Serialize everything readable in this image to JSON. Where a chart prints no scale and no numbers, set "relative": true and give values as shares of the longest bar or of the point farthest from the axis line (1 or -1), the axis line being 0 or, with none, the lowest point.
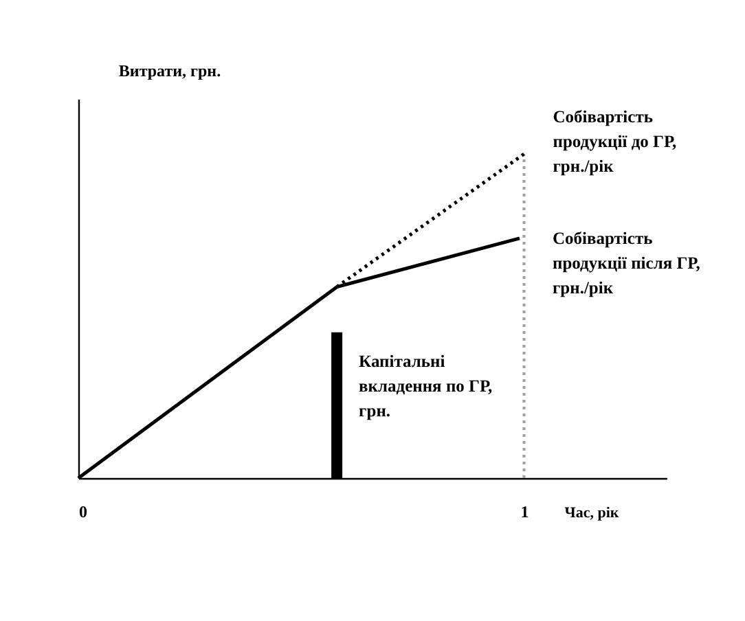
{
  "chart_data": {
    "type": "line",
    "relative": true,
    "xlabel": "Час, рік",
    "ylabel": "Витрати, грн.",
    "xlim": [
      0,
      1.32
    ],
    "xticks": [
      0,
      1
    ],
    "series": [
      {
        "color": "#000000",
        "x": [
          0,
          0.58
        ],
        "values": [
          0,
          0.59
        ],
        "line_style": "solid"
      },
      {
        "name": "Собівартість\nпродукції  до ГР,\nгрн./рік",
        "color": "#000000",
        "x": [
          0.58,
          1
        ],
        "values": [
          0.59,
          1
        ],
        "line_style": "dotted"
      },
      {
        "name": "Собівартість\nпродукції  після ГР,\nгрн./рік",
        "color": "#000000",
        "x": [
          0.58,
          0.99
        ],
        "values": [
          0.59,
          0.74
        ],
        "line_style": "solid"
      },
      {
        "type": "bar",
        "name": "Капітальні\nвкладення  по ГР,\nгрн.",
        "color": "#000000",
        "x": [
          0.58
        ],
        "values": [
          0.45
        ]
      }
    ],
    "ref_lines": [
      {
        "axis": "x",
        "value": 1,
        "color": "#a0a0a0",
        "line_style": "dotted"
      }
    ]
  }
}
